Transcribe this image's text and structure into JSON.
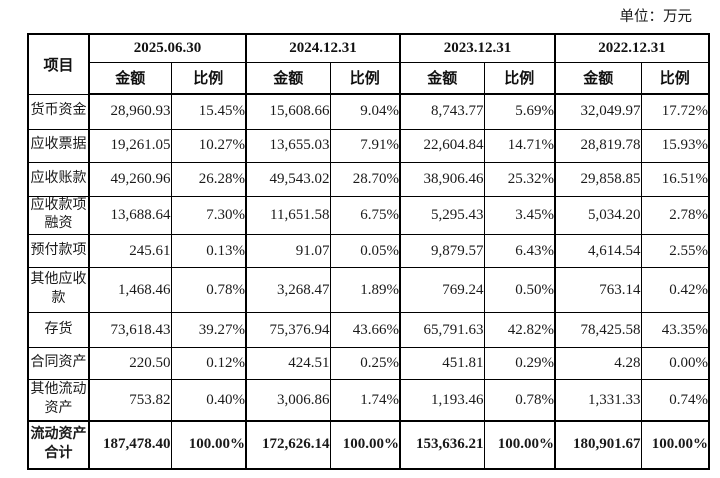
{
  "unit_label": "单位：万元",
  "table": {
    "item_header": "项目",
    "col_groups": [
      {
        "date": "2025.06.30"
      },
      {
        "date": "2024.12.31"
      },
      {
        "date": "2023.12.31"
      },
      {
        "date": "2022.12.31"
      }
    ],
    "sub_headers": {
      "amount": "金额",
      "ratio": "比例"
    },
    "rows": [
      {
        "label": "货币资金",
        "cells": [
          "28,960.93",
          "15.45%",
          "15,608.66",
          "9.04%",
          "8,743.77",
          "5.69%",
          "32,049.97",
          "17.72%"
        ]
      },
      {
        "label": "应收票据",
        "cells": [
          "19,261.05",
          "10.27%",
          "13,655.03",
          "7.91%",
          "22,604.84",
          "14.71%",
          "28,819.78",
          "15.93%"
        ]
      },
      {
        "label": "应收账款",
        "cells": [
          "49,260.96",
          "26.28%",
          "49,543.02",
          "28.70%",
          "38,906.46",
          "25.32%",
          "29,858.85",
          "16.51%"
        ]
      },
      {
        "label": "应收款项融资",
        "cells": [
          "13,688.64",
          "7.30%",
          "11,651.58",
          "6.75%",
          "5,295.43",
          "3.45%",
          "5,034.20",
          "2.78%"
        ]
      },
      {
        "label": "预付款项",
        "cells": [
          "245.61",
          "0.13%",
          "91.07",
          "0.05%",
          "9,879.57",
          "6.43%",
          "4,614.54",
          "2.55%"
        ]
      },
      {
        "label": "其他应收款",
        "cells": [
          "1,468.46",
          "0.78%",
          "3,268.47",
          "1.89%",
          "769.24",
          "0.50%",
          "763.14",
          "0.42%"
        ]
      },
      {
        "label": "存货",
        "cells": [
          "73,618.43",
          "39.27%",
          "75,376.94",
          "43.66%",
          "65,791.63",
          "42.82%",
          "78,425.58",
          "43.35%"
        ]
      },
      {
        "label": "合同资产",
        "cells": [
          "220.50",
          "0.12%",
          "424.51",
          "0.25%",
          "451.81",
          "0.29%",
          "4.28",
          "0.00%"
        ]
      },
      {
        "label": "其他流动资产",
        "cells": [
          "753.82",
          "0.40%",
          "3,006.86",
          "1.74%",
          "1,193.46",
          "0.78%",
          "1,331.33",
          "0.74%"
        ]
      },
      {
        "label": "流动资产合计",
        "total": true,
        "cells": [
          "187,478.40",
          "100.00%",
          "172,626.14",
          "100.00%",
          "153,636.21",
          "100.00%",
          "180,901.67",
          "100.00%"
        ]
      }
    ]
  }
}
